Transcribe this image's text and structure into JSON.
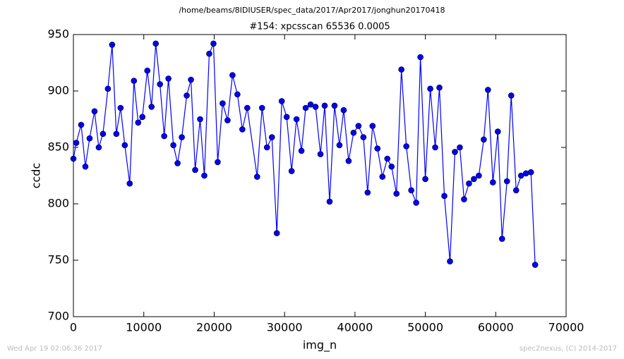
{
  "chart_data": {
    "type": "line",
    "suptitle": "/home/beams/8IDIUSER/spec_data/2017/Apr2017/jonghun20170418",
    "title": "#154: xpcsscan 65536 0.0005",
    "x_label": "img_n",
    "y_label": "ccdc",
    "timestamp": "Wed Apr 19 02:06:36 2017",
    "credit": "spec2nexus, (C) 2014-2017",
    "xlim": [
      0,
      70000
    ],
    "ylim": [
      700,
      950
    ],
    "xticks": [
      0,
      10000,
      20000,
      30000,
      40000,
      50000,
      60000,
      70000
    ],
    "yticks": [
      700,
      750,
      800,
      850,
      900,
      950
    ],
    "grid": false,
    "color": "#0000ff",
    "x": [
      0,
      400,
      1100,
      1700,
      2300,
      3000,
      3600,
      4200,
      4900,
      5500,
      6100,
      6700,
      7300,
      8000,
      8600,
      9200,
      9800,
      10500,
      11100,
      11700,
      12300,
      12900,
      13500,
      14200,
      14800,
      15400,
      16100,
      16700,
      17300,
      18000,
      18600,
      19300,
      19900,
      20500,
      21200,
      21900,
      22600,
      23300,
      24000,
      24700,
      26100,
      26800,
      27500,
      28200,
      28900,
      29600,
      30300,
      31000,
      31700,
      32400,
      33000,
      33700,
      34400,
      35100,
      35700,
      36400,
      37100,
      37800,
      38400,
      39100,
      39800,
      40500,
      41200,
      41800,
      42500,
      43200,
      43900,
      44600,
      45200,
      45900,
      46600,
      47300,
      48000,
      48700,
      49300,
      50000,
      50700,
      51400,
      52000,
      52700,
      53500,
      54200,
      54900,
      55500,
      56200,
      56900,
      57600,
      58300,
      58900,
      59600,
      60300,
      60900,
      61600,
      62200,
      62900,
      63600,
      64300,
      65000,
      65600
    ],
    "values": [
      840,
      854,
      870,
      833,
      858,
      882,
      850,
      862,
      902,
      941,
      862,
      885,
      852,
      818,
      909,
      872,
      877,
      918,
      886,
      942,
      906,
      860,
      911,
      852,
      836,
      859,
      896,
      910,
      830,
      875,
      825,
      933,
      942,
      837,
      889,
      874,
      914,
      897,
      866,
      885,
      824,
      885,
      850,
      859,
      774,
      891,
      877,
      829,
      875,
      847,
      885,
      888,
      886,
      844,
      887,
      802,
      887,
      852,
      883,
      838,
      863,
      869,
      859,
      810,
      869,
      849,
      824,
      840,
      833,
      809,
      919,
      851,
      812,
      801,
      930,
      822,
      902,
      850,
      903,
      807,
      749,
      846,
      850,
      804,
      818,
      822,
      825,
      857,
      901,
      819,
      864,
      769,
      820,
      896,
      812,
      825,
      827,
      828,
      746
    ]
  }
}
